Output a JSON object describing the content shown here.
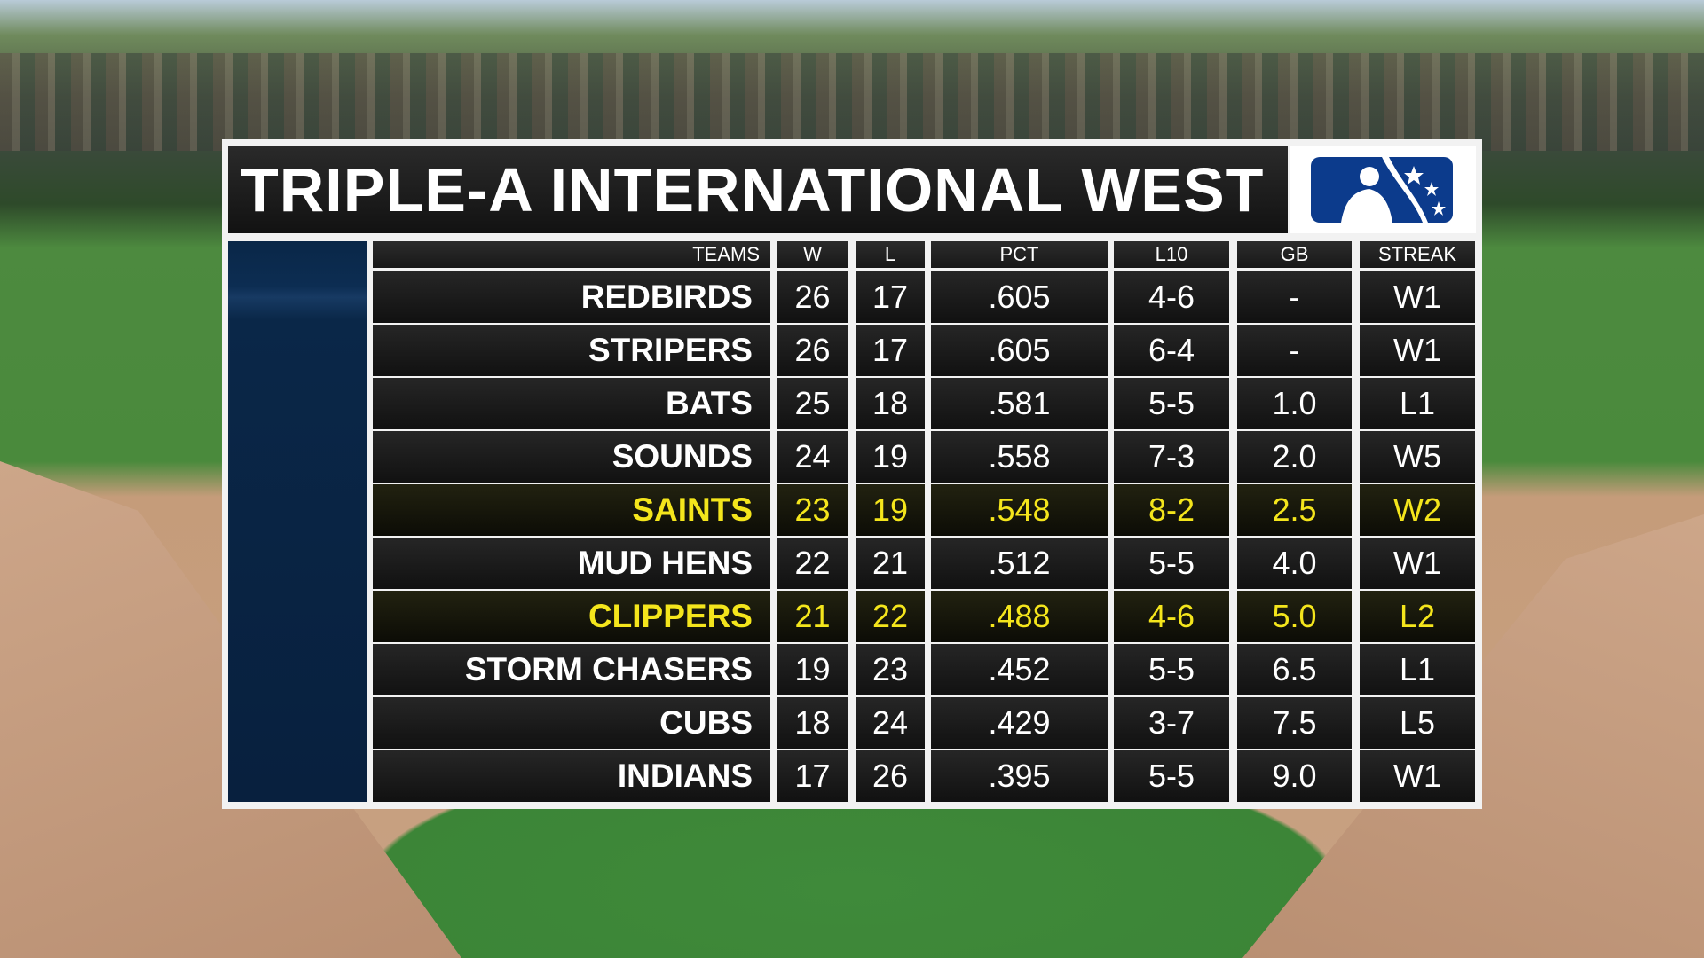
{
  "header": {
    "title": "TRIPLE-A INTERNATIONAL WEST"
  },
  "table": {
    "columns": [
      "TEAMS",
      "W",
      "L",
      "PCT",
      "L10",
      "GB",
      "STREAK"
    ],
    "rows": [
      [
        "REDBIRDS",
        "26",
        "17",
        ".605",
        "4-6",
        "-",
        "W1"
      ],
      [
        "STRIPERS",
        "26",
        "17",
        ".605",
        "6-4",
        "-",
        "W1"
      ],
      [
        "BATS",
        "25",
        "18",
        ".581",
        "5-5",
        "1.0",
        "L1"
      ],
      [
        "SOUNDS",
        "24",
        "19",
        ".558",
        "7-3",
        "2.0",
        "W5"
      ],
      [
        "SAINTS",
        "23",
        "19",
        ".548",
        "8-2",
        "2.5",
        "W2"
      ],
      [
        "MUD HENS",
        "22",
        "21",
        ".512",
        "5-5",
        "4.0",
        "W1"
      ],
      [
        "CLIPPERS",
        "21",
        "22",
        ".488",
        "4-6",
        "5.0",
        "L2"
      ],
      [
        "STORM CHASERS",
        "19",
        "23",
        ".452",
        "5-5",
        "6.5",
        "L1"
      ],
      [
        "CUBS",
        "18",
        "24",
        ".429",
        "3-7",
        "7.5",
        "L5"
      ],
      [
        "INDIANS",
        "17",
        "26",
        ".395",
        "5-5",
        "9.0",
        "W1"
      ]
    ],
    "highlighted_rows": [
      4,
      6
    ],
    "highlight_color": "#f4e51c"
  }
}
